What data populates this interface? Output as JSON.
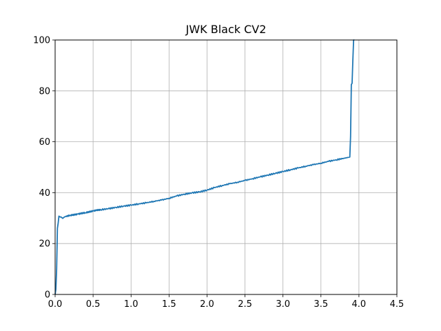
{
  "chart_data": {
    "type": "line",
    "title": "JWK Black CV2",
    "xlabel": "",
    "ylabel": "",
    "xlim": [
      0.0,
      4.5
    ],
    "ylim": [
      0,
      100
    ],
    "grid": true,
    "xticks": [
      0.0,
      0.5,
      1.0,
      1.5,
      2.0,
      2.5,
      3.0,
      3.5,
      4.0,
      4.5
    ],
    "xtick_labels": [
      "0.0",
      "0.5",
      "1.0",
      "1.5",
      "2.0",
      "2.5",
      "3.0",
      "3.5",
      "4.0",
      "4.5"
    ],
    "yticks": [
      0,
      20,
      40,
      60,
      80,
      100
    ],
    "ytick_labels": [
      "0",
      "20",
      "40",
      "60",
      "80",
      "100"
    ],
    "series": [
      {
        "color": "#1f77b4",
        "x": [
          0.0,
          0.01,
          0.02,
          0.03,
          0.04,
          0.05,
          0.06,
          0.08,
          0.1,
          0.12,
          0.15,
          0.2,
          0.25,
          0.3,
          0.35,
          0.4,
          0.45,
          0.5,
          0.55,
          0.6,
          0.7,
          0.8,
          0.9,
          1.0,
          1.1,
          1.2,
          1.3,
          1.4,
          1.5,
          1.6,
          1.7,
          1.8,
          1.9,
          2.0,
          2.1,
          2.2,
          2.3,
          2.4,
          2.5,
          2.6,
          2.7,
          2.8,
          2.9,
          3.0,
          3.1,
          3.2,
          3.3,
          3.4,
          3.5,
          3.6,
          3.7,
          3.8,
          3.88,
          3.89,
          3.9,
          3.91,
          3.92,
          3.93,
          3.94
        ],
        "y": [
          0.0,
          2.0,
          10.0,
          26.0,
          28.0,
          30.8,
          30.5,
          30.4,
          29.9,
          30.4,
          30.8,
          31.1,
          31.3,
          31.6,
          31.9,
          32.1,
          32.5,
          32.8,
          33.1,
          33.3,
          33.7,
          34.2,
          34.7,
          35.1,
          35.6,
          36.0,
          36.6,
          37.1,
          37.8,
          38.7,
          39.4,
          39.9,
          40.3,
          41.0,
          42.0,
          42.8,
          43.5,
          44.1,
          44.8,
          45.5,
          46.2,
          46.9,
          47.6,
          48.3,
          49.0,
          49.7,
          50.4,
          51.0,
          51.6,
          52.3,
          52.9,
          53.5,
          54.0,
          62.0,
          82.5,
          83.0,
          92.0,
          100.0,
          100.0
        ]
      }
    ]
  }
}
